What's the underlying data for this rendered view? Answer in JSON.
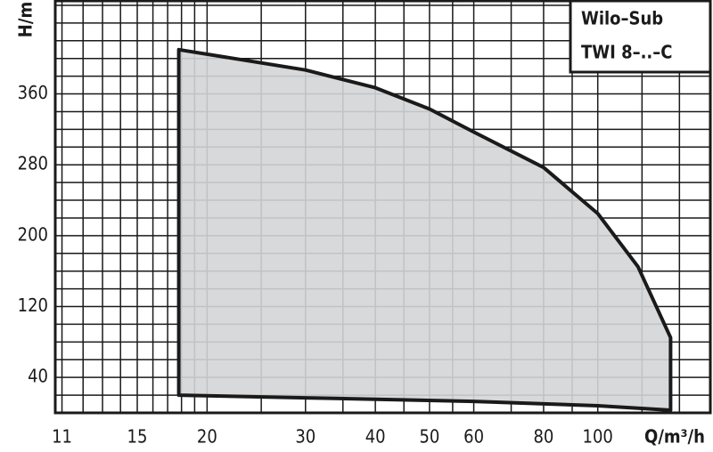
{
  "chart_data": {
    "type": "area",
    "title_lines": [
      "Wilo–Sub",
      "TWI 8–..–C"
    ],
    "x_label": "Q/m³/h",
    "y_label": "H/m",
    "x": [
      17.8,
      30,
      40,
      50,
      60,
      80,
      100,
      118,
      135,
      135,
      100,
      60,
      30,
      17.8
    ],
    "y": [
      410,
      387,
      367,
      343,
      317,
      277,
      225,
      165,
      85,
      3,
      8,
      13,
      17,
      20
    ],
    "fill": "#d3d5d7",
    "color": "#1a1a1a",
    "xlog": true,
    "xlim": [
      10.7,
      159
    ],
    "ylim": [
      0,
      465
    ],
    "xticks": [
      11,
      15,
      20,
      30,
      40,
      50,
      60,
      80,
      100
    ],
    "yticks": [
      40,
      120,
      200,
      280,
      360
    ],
    "xgrid": [
      12,
      13,
      14,
      16,
      17,
      18,
      19,
      25,
      35,
      45,
      55,
      70,
      90,
      120,
      140
    ],
    "ygrid": [
      20,
      60,
      80,
      100,
      140,
      160,
      180,
      220,
      240,
      260,
      300,
      320,
      340,
      380,
      400,
      420,
      440,
      460
    ],
    "grid": true
  }
}
